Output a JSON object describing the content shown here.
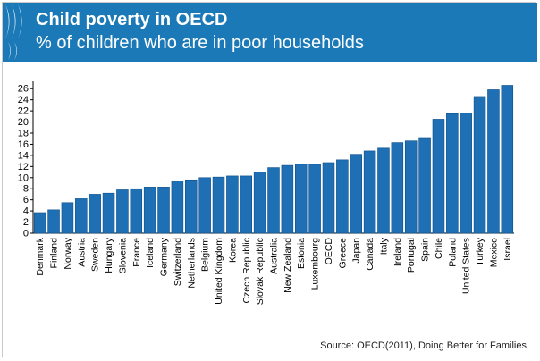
{
  "header": {
    "title": "Child poverty in OECD",
    "subtitle": "% of children who are in poor households"
  },
  "source": "Source: OECD(2011), Doing Better for Families",
  "colors": {
    "header": "#1b79b7",
    "bar": "#1f6fb5",
    "bar_edge": "#0d4f8a",
    "logo": "#ffffff"
  },
  "chart_data": {
    "type": "bar",
    "title": "Child poverty in OECD",
    "subtitle": "% of children who are in poor households",
    "xlabel": "",
    "ylabel": "",
    "ylim": [
      0,
      27
    ],
    "yticks": [
      0,
      2,
      4,
      6,
      8,
      10,
      12,
      14,
      16,
      18,
      20,
      22,
      24,
      26
    ],
    "grid": false,
    "legend": "none",
    "categories": [
      "Denmark",
      "Finland",
      "Norway",
      "Austria",
      "Sweden",
      "Hungary",
      "Slovenia",
      "France",
      "Iceland",
      "Germany",
      "Switzerland",
      "Netherlands",
      "Belgium",
      "United Kingdom",
      "Korea",
      "Czech Republic",
      "Slovak Republic",
      "Australia",
      "New Zealand",
      "Estonia",
      "Luxembourg",
      "OECD",
      "Greece",
      "Japan",
      "Canada",
      "Italy",
      "Ireland",
      "Portugal",
      "Spain",
      "Chile",
      "Poland",
      "United States",
      "Turkey",
      "Mexico",
      "Israel"
    ],
    "values": [
      3.7,
      4.2,
      5.5,
      6.2,
      7.0,
      7.2,
      7.8,
      8.0,
      8.3,
      8.3,
      9.4,
      9.6,
      10.0,
      10.1,
      10.3,
      10.3,
      11.0,
      11.8,
      12.2,
      12.4,
      12.4,
      12.7,
      13.2,
      14.2,
      14.8,
      15.3,
      16.3,
      16.6,
      17.2,
      20.5,
      21.5,
      21.6,
      24.6,
      25.8,
      26.6
    ]
  }
}
